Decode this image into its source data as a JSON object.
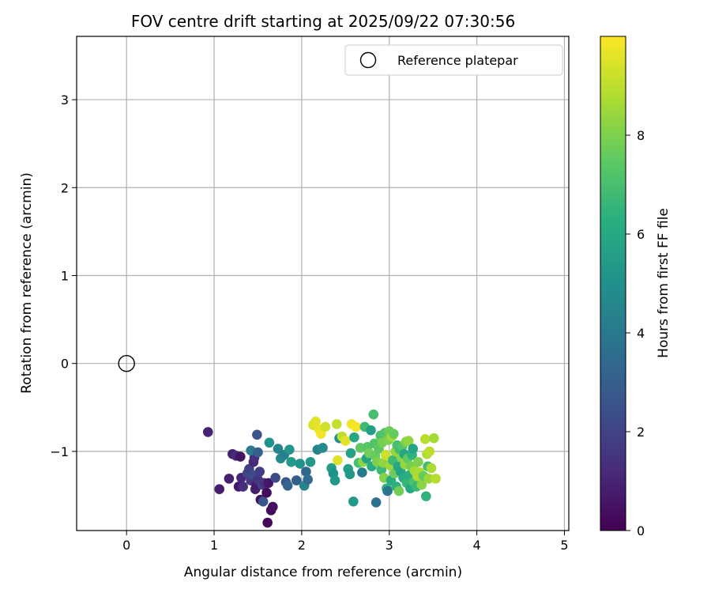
{
  "chart_data": {
    "type": "scatter",
    "title": "FOV centre drift starting at 2025/09/22 07:30:56",
    "xlabel": "Angular distance from reference (arcmin)",
    "ylabel": "Rotation from reference (arcmin)",
    "xlim": [
      -0.57,
      5.05
    ],
    "ylim": [
      -1.9,
      3.72
    ],
    "xticks": [
      0,
      1,
      2,
      3,
      4,
      5
    ],
    "yticks": [
      -1,
      0,
      1,
      2,
      3
    ],
    "grid": true,
    "legend": {
      "location": "top-right",
      "entries": [
        "Reference platepar"
      ]
    },
    "reference_point": {
      "label": "Reference platepar",
      "x": 0,
      "y": 0
    },
    "colorbar": {
      "label": "Hours from first FF file",
      "range": [
        0,
        10
      ],
      "ticks": [
        0,
        2,
        4,
        6,
        8
      ],
      "colormap": "viridis",
      "colors": [
        "#440154",
        "#472d7b",
        "#3b528b",
        "#2c728e",
        "#21918c",
        "#28ae80",
        "#5ec962",
        "#addc30",
        "#fde725"
      ]
    },
    "series": [
      {
        "name": "FOV centre",
        "columns": [
          "x",
          "y",
          "hours"
        ],
        "points": [
          [
            0.93,
            -0.78,
            1.0
          ],
          [
            1.06,
            -1.43,
            0.8
          ],
          [
            1.17,
            -1.31,
            0.9
          ],
          [
            1.21,
            -1.03,
            1.0
          ],
          [
            1.25,
            -1.05,
            1.2
          ],
          [
            1.28,
            -1.4,
            0.6
          ],
          [
            1.3,
            -1.06,
            0.5
          ],
          [
            1.31,
            -1.3,
            1.1
          ],
          [
            1.33,
            -1.4,
            1.3
          ],
          [
            1.38,
            -1.25,
            2.1
          ],
          [
            1.4,
            -1.2,
            1.9
          ],
          [
            1.42,
            -1.33,
            1.7
          ],
          [
            1.44,
            -1.27,
            2.3
          ],
          [
            1.45,
            -1.12,
            1.1
          ],
          [
            1.46,
            -1.07,
            1.3
          ],
          [
            1.47,
            -1.43,
            0.9
          ],
          [
            1.48,
            -1.38,
            0.7
          ],
          [
            1.49,
            -0.81,
            2.5
          ],
          [
            1.5,
            -1.32,
            1.5
          ],
          [
            1.52,
            -1.23,
            1.8
          ],
          [
            1.53,
            -1.55,
            0.4
          ],
          [
            1.55,
            -1.38,
            2.0
          ],
          [
            1.56,
            -1.57,
            2.6
          ],
          [
            1.57,
            -1.36,
            1.4
          ],
          [
            1.6,
            -1.47,
            0.3
          ],
          [
            1.61,
            -1.81,
            0.2
          ],
          [
            1.62,
            -1.36,
            0.6
          ],
          [
            1.65,
            -1.67,
            0.2
          ],
          [
            1.67,
            -1.63,
            0.4
          ],
          [
            1.7,
            -1.3,
            2.2
          ],
          [
            1.42,
            -0.99,
            4.1
          ],
          [
            1.5,
            -1.01,
            3.0
          ],
          [
            1.63,
            -0.9,
            5.0
          ],
          [
            1.73,
            -0.97,
            4.5
          ],
          [
            1.76,
            -1.08,
            4.8
          ],
          [
            1.8,
            -1.04,
            4.3
          ],
          [
            1.82,
            -1.35,
            2.7
          ],
          [
            1.84,
            -1.39,
            3.2
          ],
          [
            1.86,
            -0.98,
            5.2
          ],
          [
            1.88,
            -1.12,
            5.4
          ],
          [
            1.94,
            -1.33,
            3.1
          ],
          [
            1.98,
            -1.14,
            5.1
          ],
          [
            2.03,
            -1.39,
            4.6
          ],
          [
            2.05,
            -1.23,
            3.3
          ],
          [
            2.07,
            -1.32,
            3.5
          ],
          [
            2.1,
            -1.12,
            5.3
          ],
          [
            2.13,
            -0.7,
            9.4
          ],
          [
            2.16,
            -0.66,
            9.6
          ],
          [
            2.18,
            -0.98,
            4.4
          ],
          [
            2.2,
            -0.75,
            9.7
          ],
          [
            2.22,
            -0.8,
            9.8
          ],
          [
            2.24,
            -0.96,
            4.7
          ],
          [
            2.27,
            -0.72,
            9.3
          ],
          [
            2.34,
            -1.19,
            5.5
          ],
          [
            2.36,
            -1.25,
            5.0
          ],
          [
            2.38,
            -1.33,
            5.2
          ],
          [
            2.4,
            -0.69,
            9.1
          ],
          [
            2.41,
            -1.1,
            9.5
          ],
          [
            2.43,
            -0.85,
            4.9
          ],
          [
            2.46,
            -0.83,
            9.0
          ],
          [
            2.5,
            -0.88,
            9.6
          ],
          [
            2.53,
            -1.2,
            5.6
          ],
          [
            2.55,
            -1.26,
            5.3
          ],
          [
            2.56,
            -1.02,
            5.7
          ],
          [
            2.57,
            -0.69,
            9.8
          ],
          [
            2.59,
            -1.57,
            5.4
          ],
          [
            2.6,
            -0.84,
            5.9
          ],
          [
            2.62,
            -0.72,
            9.9
          ],
          [
            2.65,
            -1.13,
            7.0
          ],
          [
            2.67,
            -0.96,
            7.5
          ],
          [
            2.69,
            -1.24,
            4.2
          ],
          [
            2.7,
            -1.12,
            8.2
          ],
          [
            2.72,
            -0.72,
            6.8
          ],
          [
            2.74,
            -1.08,
            5.8
          ],
          [
            2.75,
            -0.95,
            7.3
          ],
          [
            2.77,
            -1.02,
            7.8
          ],
          [
            2.79,
            -0.76,
            5.6
          ],
          [
            2.8,
            -1.17,
            6.1
          ],
          [
            2.82,
            -0.58,
            7.0
          ],
          [
            2.83,
            -0.91,
            7.2
          ],
          [
            2.84,
            -1.05,
            7.6
          ],
          [
            2.85,
            -1.58,
            3.8
          ],
          [
            2.86,
            -1.12,
            8.0
          ],
          [
            2.88,
            -0.97,
            7.4
          ],
          [
            2.9,
            -0.82,
            7.1
          ],
          [
            2.91,
            -1.21,
            6.7
          ],
          [
            2.92,
            -0.9,
            7.9
          ],
          [
            2.93,
            -1.13,
            8.3
          ],
          [
            2.94,
            -1.3,
            8.1
          ],
          [
            2.95,
            -0.79,
            7.2
          ],
          [
            2.96,
            -1.04,
            9.2
          ],
          [
            2.97,
            -1.42,
            6.5
          ],
          [
            2.98,
            -1.45,
            3.9
          ],
          [
            2.99,
            -0.87,
            8.0
          ],
          [
            3.0,
            -0.77,
            7.7
          ],
          [
            3.01,
            -1.16,
            8.5
          ],
          [
            3.02,
            -1.33,
            6.2
          ],
          [
            3.03,
            -0.83,
            8.6
          ],
          [
            3.04,
            -1.1,
            6.8
          ],
          [
            3.05,
            -0.8,
            7.6
          ],
          [
            3.06,
            -1.25,
            7.7
          ],
          [
            3.07,
            -1.0,
            8.4
          ],
          [
            3.08,
            -1.4,
            6.4
          ],
          [
            3.09,
            -0.93,
            7.0
          ],
          [
            3.1,
            -1.17,
            6.0
          ],
          [
            3.11,
            -1.45,
            7.8
          ],
          [
            3.12,
            -0.98,
            6.9
          ],
          [
            3.13,
            -1.23,
            5.7
          ],
          [
            3.14,
            -1.07,
            8.2
          ],
          [
            3.15,
            -0.94,
            7.3
          ],
          [
            3.16,
            -1.3,
            6.1
          ],
          [
            3.17,
            -1.03,
            5.9
          ],
          [
            3.18,
            -1.15,
            8.4
          ],
          [
            3.19,
            -0.89,
            8.1
          ],
          [
            3.2,
            -1.36,
            6.6
          ],
          [
            3.21,
            -1.08,
            7.5
          ],
          [
            3.22,
            -0.88,
            8.3
          ],
          [
            3.23,
            -1.27,
            6.3
          ],
          [
            3.24,
            -1.42,
            6.0
          ],
          [
            3.25,
            -1.17,
            7.9
          ],
          [
            3.26,
            -1.04,
            6.4
          ],
          [
            3.27,
            -0.97,
            5.8
          ],
          [
            3.28,
            -1.35,
            7.1
          ],
          [
            3.29,
            -1.22,
            8.6
          ],
          [
            3.31,
            -1.4,
            6.7
          ],
          [
            3.32,
            -1.28,
            8.8
          ],
          [
            3.33,
            -1.12,
            8.0
          ],
          [
            3.35,
            -1.24,
            8.7
          ],
          [
            3.37,
            -1.38,
            8.2
          ],
          [
            3.39,
            -1.28,
            7.6
          ],
          [
            3.41,
            -0.86,
            8.9
          ],
          [
            3.42,
            -1.51,
            6.5
          ],
          [
            3.43,
            -1.03,
            8.8
          ],
          [
            3.44,
            -1.17,
            6.9
          ],
          [
            3.45,
            -1.31,
            8.5
          ],
          [
            3.46,
            -1.0,
            9.0
          ],
          [
            3.48,
            -1.19,
            8.7
          ],
          [
            3.51,
            -0.85,
            8.6
          ],
          [
            3.53,
            -1.31,
            8.9
          ]
        ]
      }
    ]
  }
}
